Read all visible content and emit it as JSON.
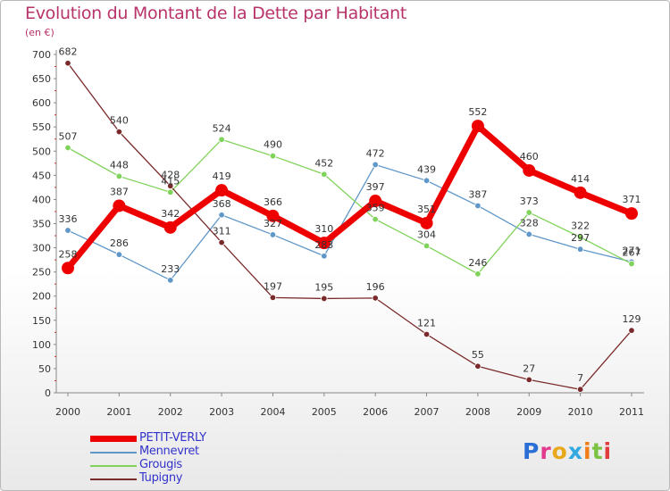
{
  "header": {
    "title": "Evolution du Montant de la Dette par Habitant",
    "subtitle": "(en €)"
  },
  "chart_data": {
    "type": "line",
    "title": "Evolution du Montant de la Dette par Habitant",
    "subtitle": "(en €)",
    "x": [
      "2000",
      "2001",
      "2002",
      "2003",
      "2004",
      "2005",
      "2006",
      "2007",
      "2008",
      "2009",
      "2010",
      "2011"
    ],
    "ylim": [
      0,
      700
    ],
    "yticks": [
      0,
      50,
      100,
      150,
      200,
      250,
      300,
      350,
      400,
      450,
      500,
      550,
      600,
      650,
      700
    ],
    "grid": false,
    "legend_position": "bottom-left",
    "series": [
      {
        "name": "PETIT-VERLY",
        "color": "#ee0000",
        "values": [
          258,
          387,
          342,
          419,
          366,
          310,
          397,
          351,
          552,
          460,
          414,
          371
        ]
      },
      {
        "name": "Mennevret",
        "color": "#5f97c9",
        "values": [
          336,
          286,
          233,
          368,
          327,
          283,
          472,
          439,
          387,
          328,
          297,
          271
        ]
      },
      {
        "name": "Grougis",
        "color": "#80d35a",
        "values": [
          507,
          448,
          415,
          524,
          490,
          452,
          359,
          304,
          246,
          373,
          322,
          267
        ]
      },
      {
        "name": "Tupigny",
        "color": "#7a2a2a",
        "values": [
          682,
          540,
          428,
          311,
          197,
          195,
          196,
          121,
          55,
          27,
          7,
          129
        ]
      }
    ]
  },
  "legend": [
    {
      "label": "PETIT-VERLY",
      "color": "#ee0000",
      "thick": true
    },
    {
      "label": "Mennevret",
      "color": "#5f97c9",
      "thick": false
    },
    {
      "label": "Grougis",
      "color": "#80d35a",
      "thick": false
    },
    {
      "label": "Tupigny",
      "color": "#7a2a2a",
      "thick": false
    }
  ],
  "logo": {
    "letters": [
      "P",
      "r",
      "o",
      "x",
      "i",
      "t",
      "i"
    ],
    "colors": [
      "#2a6fd6",
      "#e23b8e",
      "#e8a81c",
      "#31a8e0",
      "#f07d1a",
      "#7cc243",
      "#e23b3b"
    ]
  }
}
